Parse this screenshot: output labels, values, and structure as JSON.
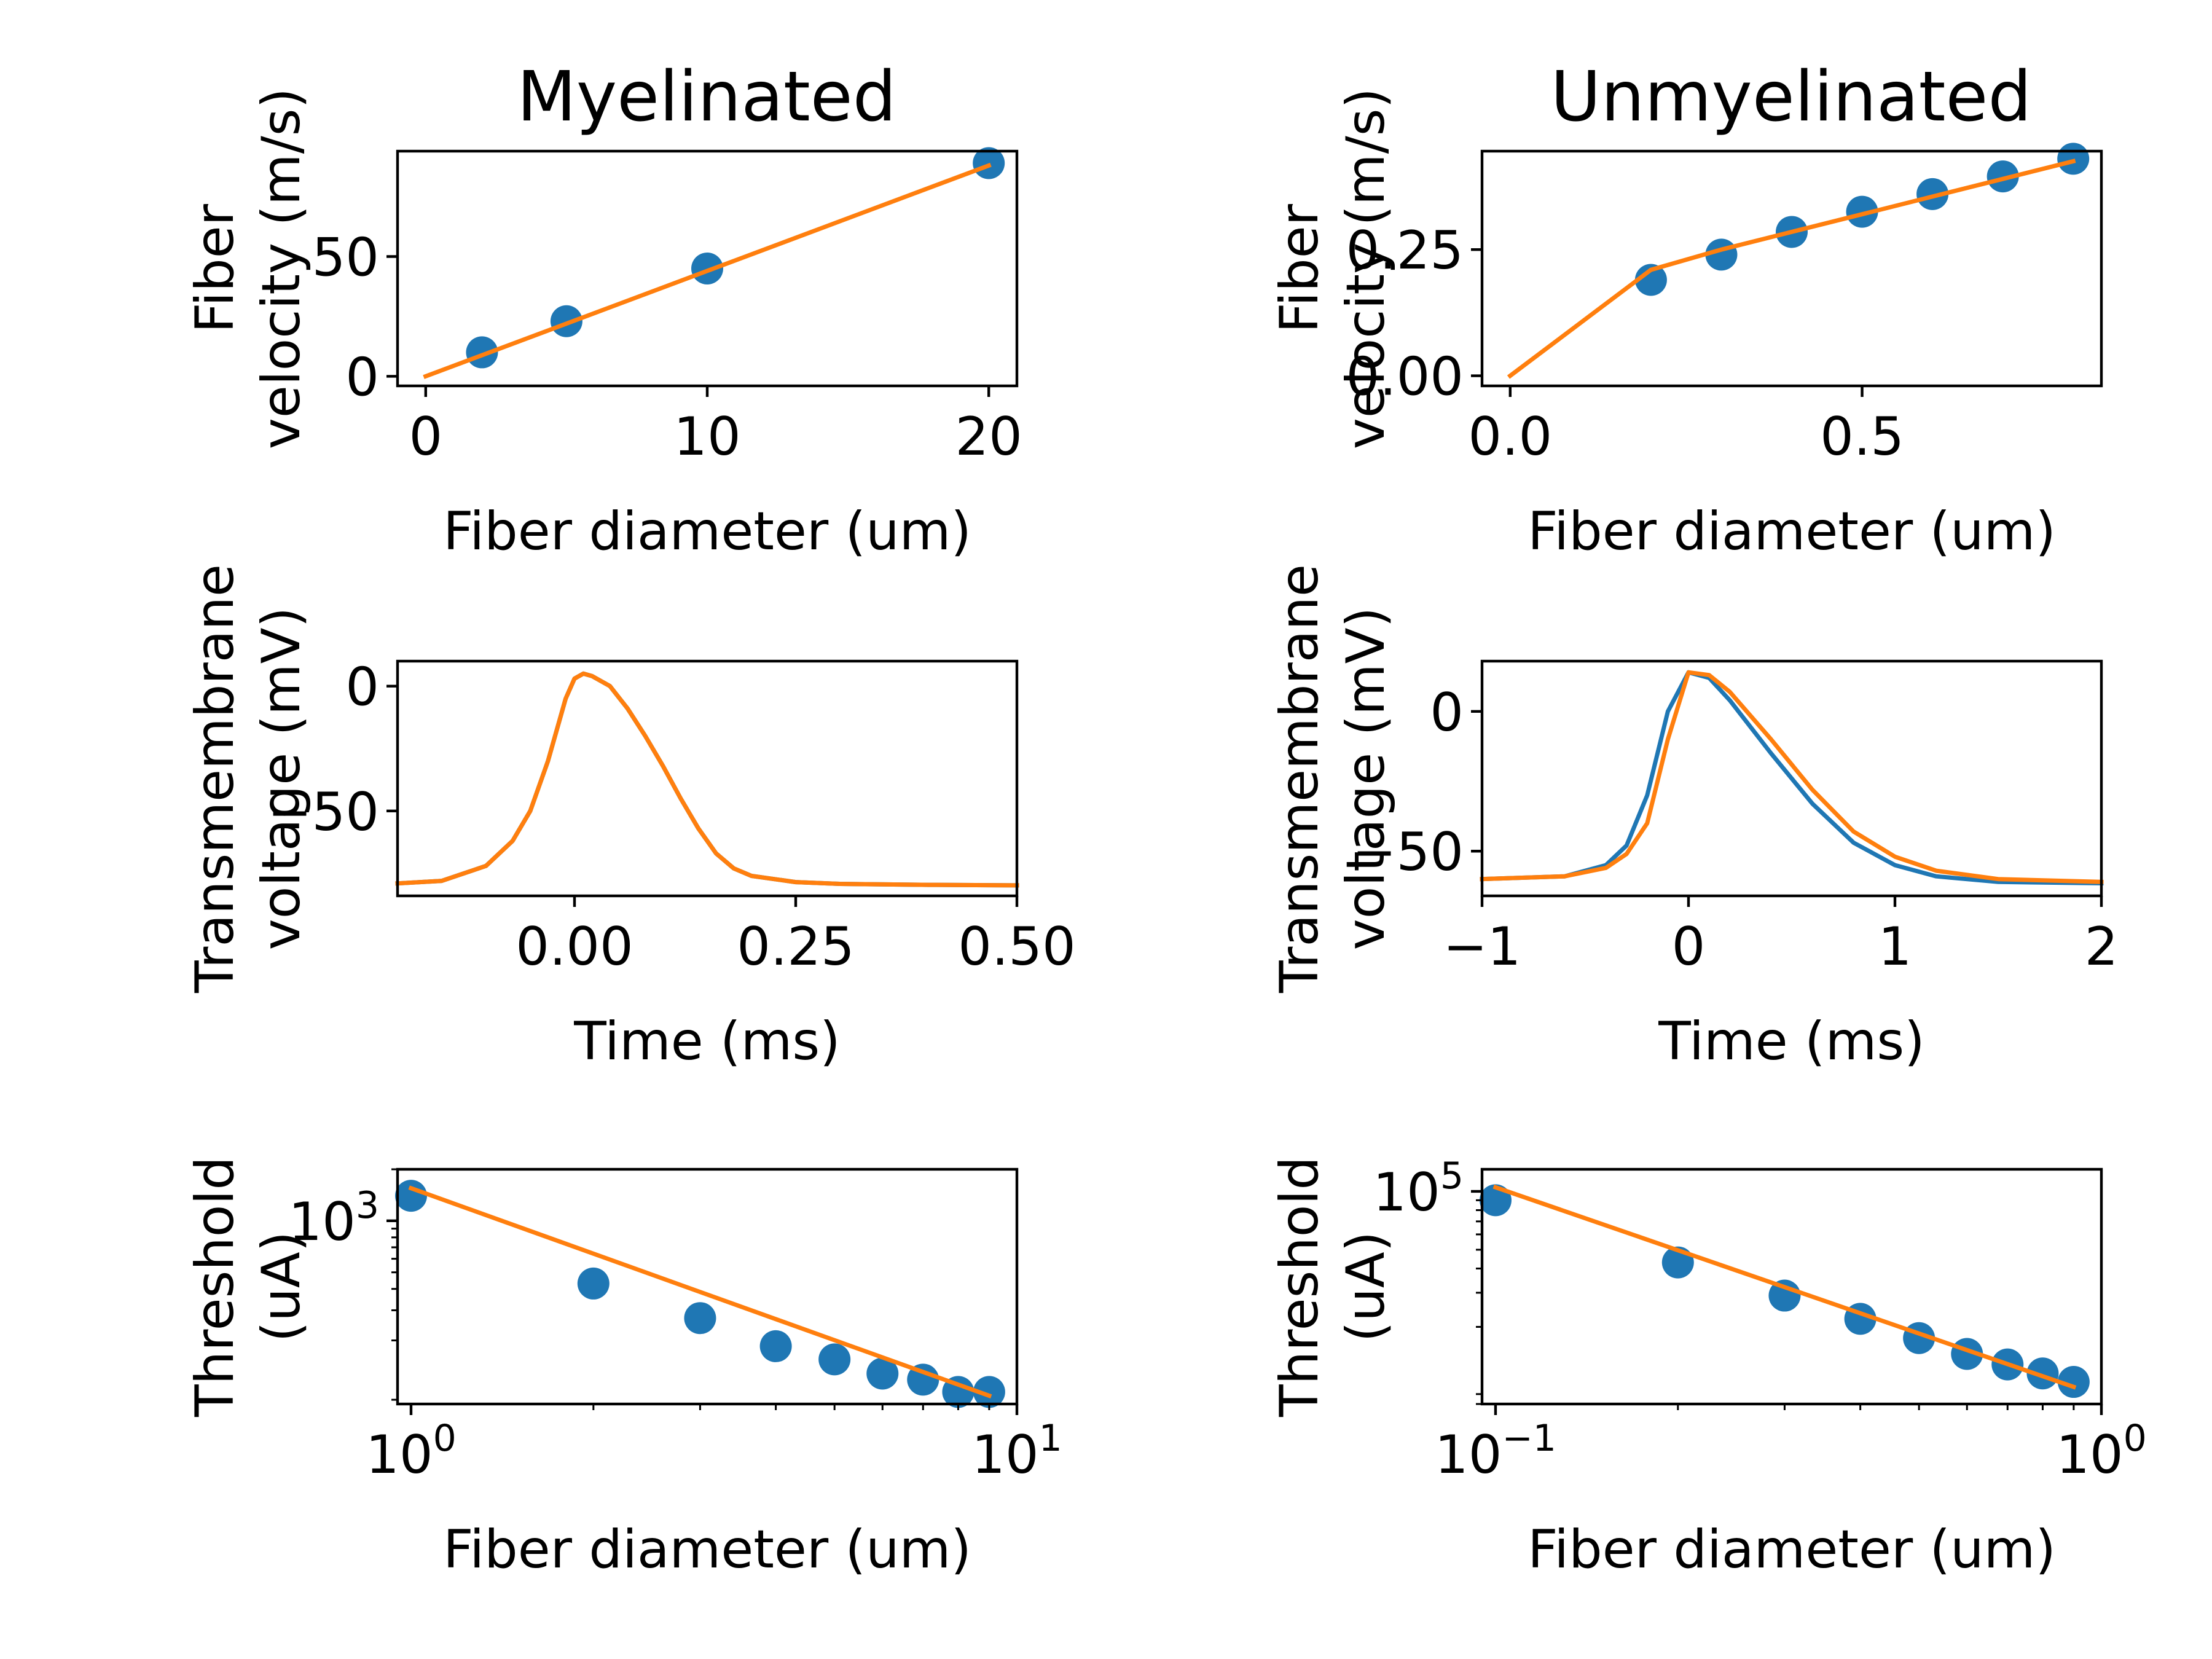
{
  "figure": {
    "columns": [
      "Myelinated",
      "Unmyelinated"
    ]
  },
  "colors": {
    "measured": "#1f77b4",
    "model": "#ff7f0e"
  },
  "chart_data": [
    {
      "id": "velocity-myelinated",
      "type": "scatter",
      "title": "Myelinated",
      "xlabel": "Fiber diameter (um)",
      "ylabel": [
        "Fiber",
        "velocity (m/s)"
      ],
      "xscale": "linear",
      "yscale": "linear",
      "xlim": [
        -1,
        21
      ],
      "ylim": [
        -4,
        94
      ],
      "xticks": [
        {
          "value": 0,
          "label": "0"
        },
        {
          "value": 10,
          "label": "10"
        },
        {
          "value": 20,
          "label": "20"
        }
      ],
      "yticks": [
        {
          "value": 0,
          "label": "0"
        },
        {
          "value": 50,
          "label": "50"
        }
      ],
      "grid": false,
      "series": [
        {
          "kind": "scatter",
          "color": "#1f77b4",
          "x": [
            2,
            5,
            10,
            20
          ],
          "y": [
            10,
            23,
            45,
            89
          ]
        },
        {
          "kind": "line",
          "color": "#ff7f0e",
          "x": [
            0,
            20
          ],
          "y": [
            0,
            88
          ]
        }
      ]
    },
    {
      "id": "velocity-unmyelinated",
      "type": "scatter",
      "title": "Unmyelinated",
      "xlabel": "Fiber diameter (um)",
      "ylabel": [
        "Fiber",
        "velocity (m/s)"
      ],
      "xscale": "linear",
      "yscale": "linear",
      "xlim": [
        -0.04,
        0.84
      ],
      "ylim": [
        -0.02,
        0.445
      ],
      "xticks": [
        {
          "value": 0,
          "label": "0.0"
        },
        {
          "value": 0.5,
          "label": "0.5"
        }
      ],
      "yticks": [
        {
          "value": 0,
          "label": "0.00"
        },
        {
          "value": 0.25,
          "label": "0.25"
        }
      ],
      "grid": false,
      "series": [
        {
          "kind": "scatter",
          "color": "#1f77b4",
          "x": [
            0.2,
            0.3,
            0.4,
            0.5,
            0.6,
            0.7,
            0.8
          ],
          "y": [
            0.19,
            0.24,
            0.285,
            0.325,
            0.36,
            0.395,
            0.43
          ]
        },
        {
          "kind": "line",
          "color": "#ff7f0e",
          "x": [
            0,
            0.2,
            0.3,
            0.4,
            0.5,
            0.6,
            0.7,
            0.8
          ],
          "y": [
            0,
            0.21,
            0.25,
            0.285,
            0.32,
            0.355,
            0.39,
            0.425
          ]
        }
      ]
    },
    {
      "id": "voltage-myelinated",
      "type": "line",
      "xlabel": "Time (ms)",
      "ylabel": [
        "Transmembrane",
        "voltage (mV)"
      ],
      "xscale": "linear",
      "yscale": "linear",
      "xlim": [
        -0.2,
        0.5
      ],
      "ylim": [
        -84,
        10
      ],
      "xticks": [
        {
          "value": 0,
          "label": "0.00"
        },
        {
          "value": 0.25,
          "label": "0.25"
        },
        {
          "value": 0.5,
          "label": "0.50"
        }
      ],
      "yticks": [
        {
          "value": 0,
          "label": "0"
        },
        {
          "value": -50,
          "label": "−50"
        }
      ],
      "grid": false,
      "series": [
        {
          "kind": "line",
          "color": "#1f77b4",
          "x": [
            -0.2,
            -0.15,
            -0.1,
            -0.07,
            -0.05,
            -0.03,
            -0.01,
            0,
            0.01,
            0.02,
            0.04,
            0.06,
            0.08,
            0.1,
            0.12,
            0.14,
            0.16,
            0.18,
            0.2,
            0.25,
            0.3,
            0.4,
            0.5
          ],
          "y": [
            -79,
            -78,
            -72,
            -62,
            -50,
            -30,
            -5,
            3,
            5,
            4,
            0,
            -9,
            -20,
            -32,
            -45,
            -57,
            -67,
            -73,
            -76,
            -78.5,
            -79.2,
            -79.6,
            -79.8
          ]
        },
        {
          "kind": "line",
          "color": "#ff7f0e",
          "x": [
            -0.2,
            -0.15,
            -0.1,
            -0.07,
            -0.05,
            -0.03,
            -0.01,
            0,
            0.01,
            0.02,
            0.04,
            0.06,
            0.08,
            0.1,
            0.12,
            0.14,
            0.16,
            0.18,
            0.2,
            0.25,
            0.3,
            0.4,
            0.5
          ],
          "y": [
            -79,
            -78,
            -72,
            -62,
            -50,
            -30,
            -5,
            3,
            5,
            4,
            0,
            -9,
            -20,
            -32,
            -45,
            -57,
            -67,
            -73,
            -76,
            -78.5,
            -79.2,
            -79.6,
            -79.8
          ]
        }
      ]
    },
    {
      "id": "voltage-unmyelinated",
      "type": "line",
      "xlabel": "Time (ms)",
      "ylabel": [
        "Transmembrane",
        "voltage (mV)"
      ],
      "xscale": "linear",
      "yscale": "linear",
      "xlim": [
        -1,
        2
      ],
      "ylim": [
        -66,
        18
      ],
      "xticks": [
        {
          "value": -1,
          "label": "−1"
        },
        {
          "value": 0,
          "label": "0"
        },
        {
          "value": 1,
          "label": "1"
        },
        {
          "value": 2,
          "label": "2"
        }
      ],
      "yticks": [
        {
          "value": 0,
          "label": "0"
        },
        {
          "value": -50,
          "label": "−50"
        }
      ],
      "grid": false,
      "series": [
        {
          "kind": "line",
          "color": "#1f77b4",
          "x": [
            -1,
            -0.6,
            -0.4,
            -0.3,
            -0.2,
            -0.1,
            0,
            0.1,
            0.2,
            0.4,
            0.6,
            0.8,
            1.0,
            1.2,
            1.5,
            2.0
          ],
          "y": [
            -60,
            -59,
            -55,
            -48,
            -30,
            0,
            14,
            12,
            4,
            -15,
            -33,
            -47,
            -55,
            -59,
            -61,
            -61.5
          ]
        },
        {
          "kind": "line",
          "color": "#ff7f0e",
          "x": [
            -1,
            -0.6,
            -0.4,
            -0.3,
            -0.2,
            -0.1,
            0,
            0.1,
            0.2,
            0.4,
            0.6,
            0.8,
            1.0,
            1.2,
            1.5,
            2.0
          ],
          "y": [
            -60,
            -59,
            -56,
            -51,
            -40,
            -10,
            14,
            13,
            7,
            -10,
            -28,
            -43,
            -52,
            -57,
            -60,
            -61
          ]
        }
      ]
    },
    {
      "id": "threshold-myelinated",
      "type": "scatter",
      "xlabel": "Fiber diameter (um)",
      "ylabel": [
        "Threshold",
        "(uA)"
      ],
      "xscale": "log",
      "yscale": "log",
      "xlim": [
        0.95,
        10
      ],
      "ylim": [
        85,
        2000
      ],
      "xticks": [
        {
          "value": 1,
          "base": "10",
          "exp": "0"
        },
        {
          "value": 10,
          "base": "10",
          "exp": "1"
        }
      ],
      "yticks": [
        {
          "value": 1000,
          "base": "10",
          "exp": "3"
        }
      ],
      "grid": false,
      "series": [
        {
          "kind": "scatter",
          "color": "#1f77b4",
          "x": [
            1,
            2,
            3,
            4,
            5,
            6,
            7,
            8,
            9
          ],
          "y": [
            1400,
            430,
            270,
            185,
            155,
            128,
            118,
            100,
            100
          ]
        },
        {
          "kind": "line",
          "color": "#ff7f0e",
          "x": [
            1,
            9
          ],
          "y": [
            1550,
            95
          ]
        }
      ]
    },
    {
      "id": "threshold-unmyelinated",
      "type": "scatter",
      "xlabel": "Fiber diameter (um)",
      "ylabel": [
        "Threshold",
        "(uA)"
      ],
      "xscale": "log",
      "yscale": "log",
      "xlim": [
        0.095,
        1.0
      ],
      "ylim": [
        8000,
        130000
      ],
      "xticks": [
        {
          "value": 0.1,
          "base": "10",
          "exp": "−1"
        },
        {
          "value": 1,
          "base": "10",
          "exp": "0"
        }
      ],
      "yticks": [
        {
          "value": 100000,
          "base": "10",
          "exp": "5"
        }
      ],
      "grid": false,
      "series": [
        {
          "kind": "scatter",
          "color": "#1f77b4",
          "x": [
            0.1,
            0.2,
            0.3,
            0.4,
            0.5,
            0.6,
            0.7,
            0.8,
            0.9
          ],
          "y": [
            90000,
            43000,
            29000,
            22000,
            17500,
            14500,
            12800,
            11500,
            10400
          ]
        },
        {
          "kind": "line",
          "color": "#ff7f0e",
          "x": [
            0.1,
            0.9
          ],
          "y": [
            105000,
            9800
          ]
        }
      ]
    }
  ]
}
